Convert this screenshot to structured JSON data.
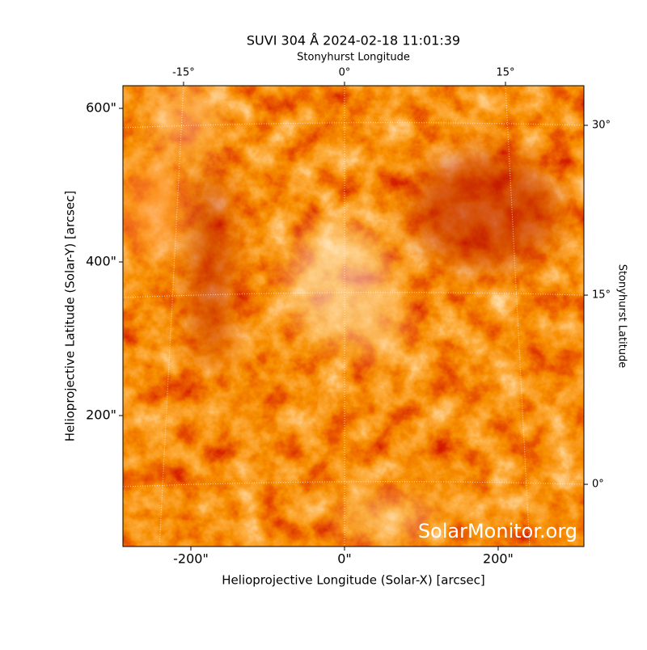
{
  "chart_data": {
    "type": "image",
    "title": "SUVI 304 Å 2024-02-18 11:01:39",
    "xlabel": "Helioprojective Longitude (Solar-X) [arcsec]",
    "ylabel": "Helioprojective Latitude (Solar-Y) [arcsec]",
    "x2label": "Stonyhurst Longitude",
    "y2label": "Stonyhurst Latitude",
    "watermark": "SolarMonitor.org",
    "xlim": [
      -288.4,
      311.6
    ],
    "ylim": [
      29.5,
      629.5
    ],
    "xticks": [
      {
        "value": -200,
        "label": "-200\""
      },
      {
        "value": 0,
        "label": "0\""
      },
      {
        "value": 200,
        "label": "200\""
      }
    ],
    "yticks": [
      {
        "value": 200,
        "label": "200\""
      },
      {
        "value": 400,
        "label": "400\""
      },
      {
        "value": 600,
        "label": "600\""
      }
    ],
    "x2ticks": [
      {
        "value": -209.5,
        "label": "-15°"
      },
      {
        "value": 0,
        "label": "0°"
      },
      {
        "value": 209.5,
        "label": "15°"
      }
    ],
    "y2ticks": [
      {
        "value": 110.5,
        "label": "0°"
      },
      {
        "value": 356.8,
        "label": "15°"
      },
      {
        "value": 577.9,
        "label": "30°"
      }
    ],
    "grid": true
  }
}
